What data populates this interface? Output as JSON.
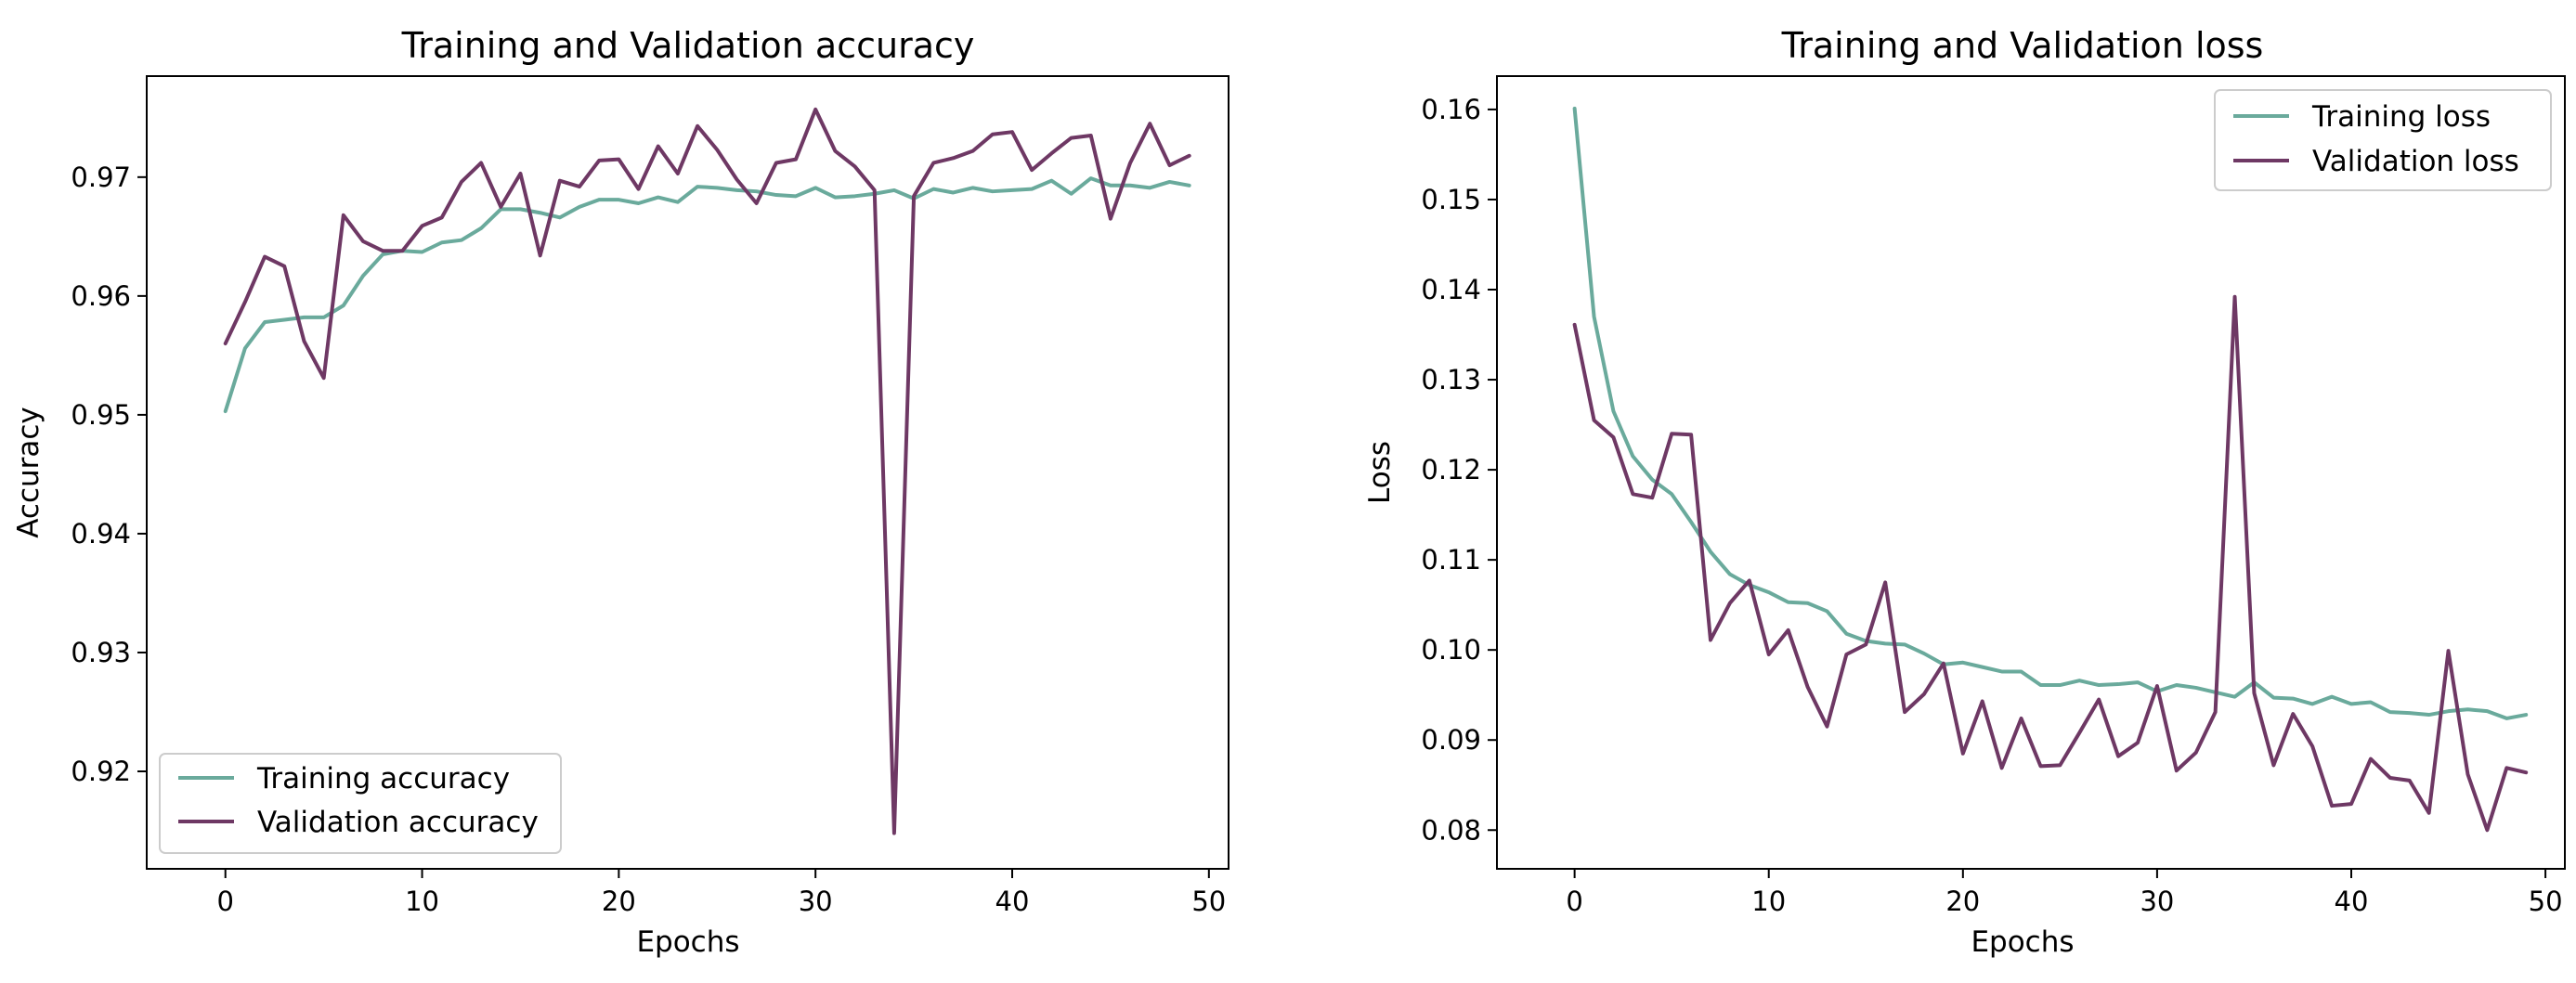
{
  "colors": {
    "training": "#6aaa9c",
    "validation": "#6e3864"
  },
  "chart_data": [
    {
      "type": "line",
      "title": "Training and Validation accuracy",
      "xlabel": "Epochs",
      "ylabel": "Accuracy",
      "xlim": [
        -4,
        51
      ],
      "ylim": [
        0.9118,
        0.9785
      ],
      "xticks": [
        0,
        10,
        20,
        30,
        40,
        50
      ],
      "xticklabels": [
        "0",
        "10",
        "20",
        "30",
        "40",
        "50"
      ],
      "yticks": [
        0.92,
        0.93,
        0.94,
        0.95,
        0.96,
        0.97
      ],
      "yticklabels": [
        "0.92",
        "0.93",
        "0.94",
        "0.95",
        "0.96",
        "0.97"
      ],
      "grid": false,
      "legend_position": "lower-left",
      "series": [
        {
          "name": "Training accuracy",
          "color_key": "training",
          "values": [
            0.9503,
            0.9556,
            0.9578,
            0.958,
            0.9582,
            0.9582,
            0.9592,
            0.9617,
            0.9635,
            0.9638,
            0.9637,
            0.9645,
            0.9647,
            0.9657,
            0.9673,
            0.9673,
            0.967,
            0.9666,
            0.9675,
            0.9681,
            0.9681,
            0.9678,
            0.9683,
            0.9679,
            0.9692,
            0.9691,
            0.9689,
            0.9688,
            0.9685,
            0.9684,
            0.9691,
            0.9683,
            0.9684,
            0.9686,
            0.9689,
            0.9682,
            0.969,
            0.9687,
            0.9691,
            0.9688,
            0.9689,
            0.969,
            0.9697,
            0.9686,
            0.9699,
            0.9693,
            0.9693,
            0.9691,
            0.9696,
            0.9693
          ]
        },
        {
          "name": "Validation accuracy",
          "color_key": "validation",
          "values": [
            0.956,
            0.9595,
            0.9633,
            0.9625,
            0.9562,
            0.9531,
            0.9668,
            0.9646,
            0.9638,
            0.9638,
            0.9659,
            0.9666,
            0.9696,
            0.9712,
            0.9675,
            0.9703,
            0.9634,
            0.9697,
            0.9692,
            0.9714,
            0.9715,
            0.969,
            0.9726,
            0.9703,
            0.9743,
            0.9723,
            0.9698,
            0.9678,
            0.9712,
            0.9715,
            0.9757,
            0.9722,
            0.9709,
            0.9689,
            0.9148,
            0.9684,
            0.9712,
            0.9716,
            0.9722,
            0.9736,
            0.9738,
            0.9706,
            0.972,
            0.9733,
            0.9735,
            0.9665,
            0.9712,
            0.9745,
            0.971,
            0.9718
          ]
        }
      ]
    },
    {
      "type": "line",
      "title": "Training and Validation loss",
      "xlabel": "Epochs",
      "ylabel": "Loss",
      "xlim": [
        -4,
        51
      ],
      "ylim": [
        0.0757,
        0.1637
      ],
      "xticks": [
        0,
        10,
        20,
        30,
        40,
        50
      ],
      "xticklabels": [
        "0",
        "10",
        "20",
        "30",
        "40",
        "50"
      ],
      "yticks": [
        0.08,
        0.09,
        0.1,
        0.11,
        0.12,
        0.13,
        0.14,
        0.15,
        0.16
      ],
      "yticklabels": [
        "0.08",
        "0.09",
        "0.10",
        "0.11",
        "0.12",
        "0.13",
        "0.14",
        "0.15",
        "0.16"
      ],
      "grid": false,
      "legend_position": "upper-right",
      "series": [
        {
          "name": "Training loss",
          "color_key": "training",
          "values": [
            0.1601,
            0.137,
            0.1265,
            0.1215,
            0.1189,
            0.1173,
            0.1142,
            0.1109,
            0.1084,
            0.1072,
            0.1064,
            0.1053,
            0.1052,
            0.1043,
            0.1018,
            0.101,
            0.1007,
            0.1006,
            0.0996,
            0.0984,
            0.0986,
            0.0981,
            0.0976,
            0.0976,
            0.0961,
            0.0961,
            0.0966,
            0.0961,
            0.0962,
            0.0964,
            0.0954,
            0.0961,
            0.0958,
            0.0953,
            0.0948,
            0.0964,
            0.0947,
            0.0946,
            0.094,
            0.0948,
            0.094,
            0.0942,
            0.0931,
            0.093,
            0.0928,
            0.0932,
            0.0934,
            0.0932,
            0.0924,
            0.0928
          ]
        },
        {
          "name": "Validation loss",
          "color_key": "validation",
          "values": [
            0.1361,
            0.1255,
            0.1236,
            0.1173,
            0.1169,
            0.124,
            0.1239,
            0.1011,
            0.1052,
            0.1077,
            0.0995,
            0.1022,
            0.0959,
            0.0915,
            0.0995,
            0.1006,
            0.1075,
            0.0931,
            0.0951,
            0.0985,
            0.0885,
            0.0943,
            0.0869,
            0.0924,
            0.0871,
            0.0872,
            0.0908,
            0.0945,
            0.0882,
            0.0897,
            0.096,
            0.0866,
            0.0886,
            0.0931,
            0.1392,
            0.0952,
            0.0872,
            0.0929,
            0.0893,
            0.0827,
            0.0829,
            0.0879,
            0.0858,
            0.0855,
            0.0819,
            0.0999,
            0.0862,
            0.08,
            0.0869,
            0.0864
          ]
        }
      ]
    }
  ]
}
